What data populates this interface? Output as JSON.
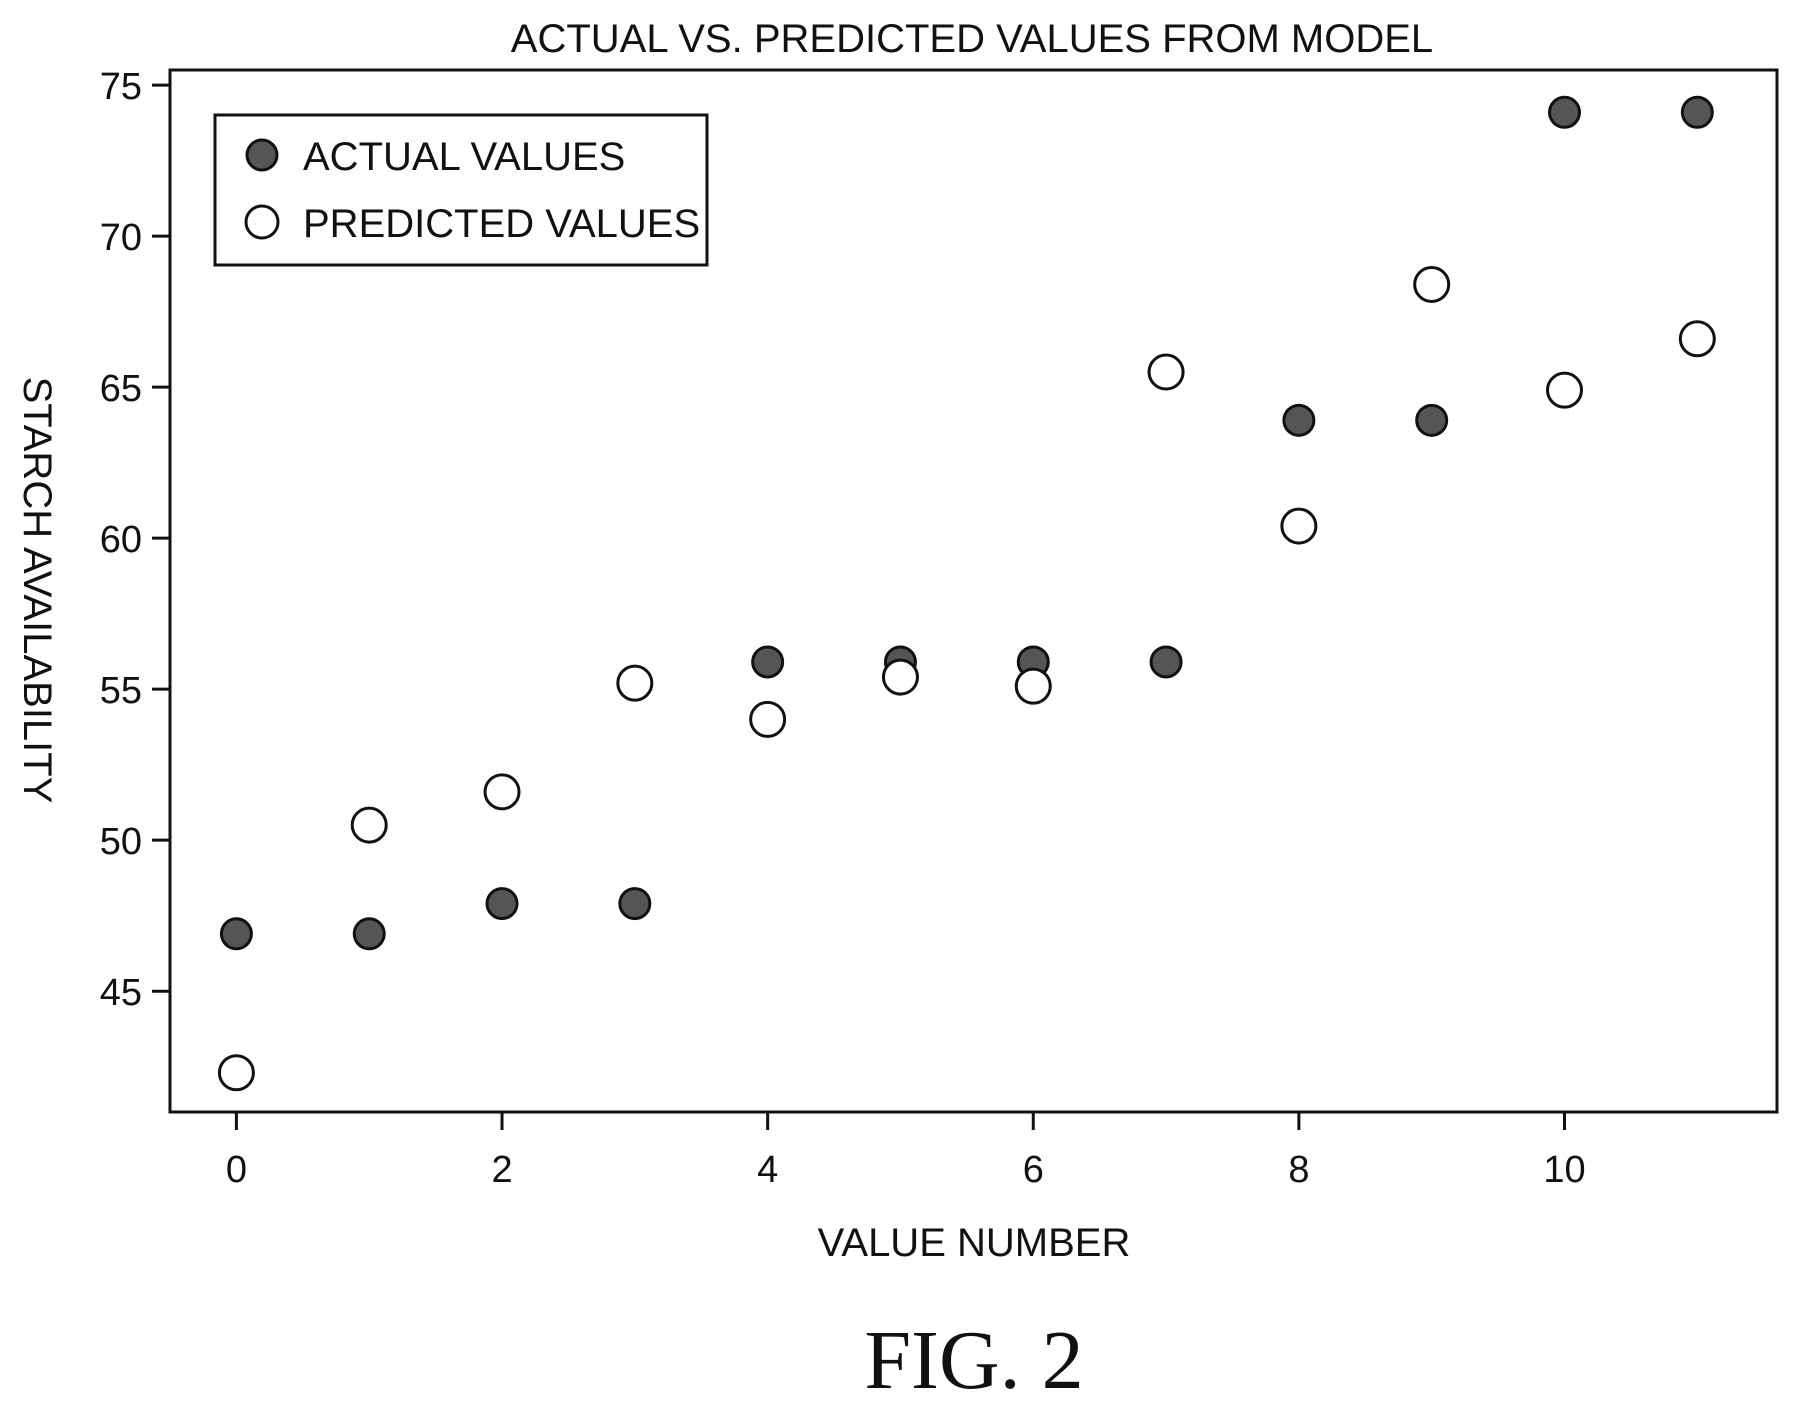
{
  "chart_data": {
    "type": "scatter",
    "title": "ACTUAL VS. PREDICTED VALUES FROM MODEL",
    "xlabel": "VALUE NUMBER",
    "ylabel": "STARCH AVAILABILITY",
    "xlim": [
      -0.5,
      11.6
    ],
    "ylim": [
      41.0,
      75.5
    ],
    "xticks": [
      0,
      2,
      4,
      6,
      8,
      10
    ],
    "yticks": [
      45,
      50,
      55,
      60,
      65,
      70,
      75
    ],
    "grid": false,
    "legend_position": "top-left",
    "series": [
      {
        "name": "ACTUAL VALUES",
        "marker": "filled-circle",
        "color": "#555555",
        "points": [
          {
            "x": 0,
            "y": 46.9
          },
          {
            "x": 1,
            "y": 46.9
          },
          {
            "x": 2,
            "y": 47.9
          },
          {
            "x": 3,
            "y": 47.9
          },
          {
            "x": 4,
            "y": 55.9
          },
          {
            "x": 5,
            "y": 55.9
          },
          {
            "x": 6,
            "y": 55.9
          },
          {
            "x": 7,
            "y": 55.9
          },
          {
            "x": 8,
            "y": 63.9
          },
          {
            "x": 9,
            "y": 63.9
          },
          {
            "x": 10,
            "y": 74.1
          },
          {
            "x": 11,
            "y": 74.1
          }
        ]
      },
      {
        "name": "PREDICTED VALUES",
        "marker": "open-circle",
        "color": "#111111",
        "points": [
          {
            "x": 0,
            "y": 42.3
          },
          {
            "x": 1,
            "y": 50.5
          },
          {
            "x": 2,
            "y": 51.6
          },
          {
            "x": 3,
            "y": 55.2
          },
          {
            "x": 4,
            "y": 54.0
          },
          {
            "x": 5,
            "y": 55.4
          },
          {
            "x": 6,
            "y": 55.1
          },
          {
            "x": 7,
            "y": 65.5
          },
          {
            "x": 8,
            "y": 60.4
          },
          {
            "x": 9,
            "y": 68.4
          },
          {
            "x": 10,
            "y": 64.9
          },
          {
            "x": 11,
            "y": 66.6
          }
        ]
      }
    ]
  },
  "figure_label": "FIG. 2"
}
